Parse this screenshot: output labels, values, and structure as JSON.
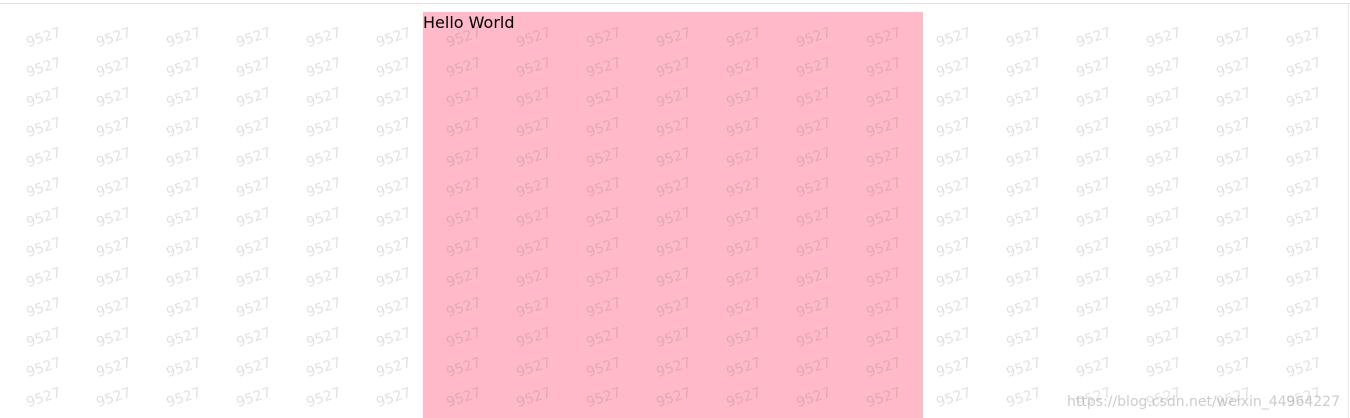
{
  "content": {
    "text": "Hello World",
    "background": "#ffb9c8"
  },
  "watermark": {
    "text": "9527",
    "color": "rgba(120,120,120,0.22)"
  },
  "footer": {
    "text": "https://blog.csdn.net/weixin_44964227"
  }
}
